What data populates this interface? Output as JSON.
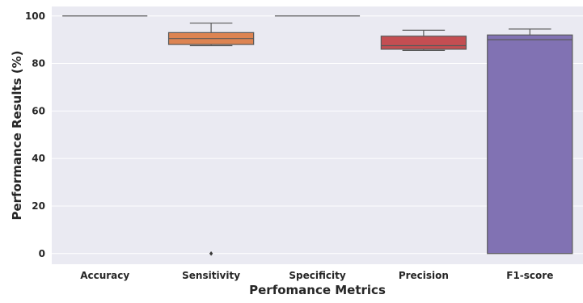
{
  "chart_data": {
    "type": "box",
    "title": "",
    "xlabel": "Perfomance Metrics",
    "ylabel": "Performance Results (%)",
    "ylim": [
      -4.5,
      104
    ],
    "yticks": [
      0,
      20,
      40,
      60,
      80,
      100
    ],
    "grid": true,
    "categories": [
      "Accuracy",
      "Sensitivity",
      "Specificity",
      "Precision",
      "F1-score"
    ],
    "boxes": [
      {
        "category": "Accuracy",
        "whisker_low": 100,
        "q1": 100,
        "median": 100,
        "q3": 100,
        "whisker_high": 100,
        "outliers": [],
        "color": "#4c72b0"
      },
      {
        "category": "Sensitivity",
        "whisker_low": 87.5,
        "q1": 88,
        "median": 90.5,
        "q3": 93,
        "whisker_high": 97,
        "outliers": [
          0
        ],
        "color": "#dd8452"
      },
      {
        "category": "Specificity",
        "whisker_low": 100,
        "q1": 100,
        "median": 100,
        "q3": 100,
        "whisker_high": 100,
        "outliers": [],
        "color": "#55a868"
      },
      {
        "category": "Precision",
        "whisker_low": 85.5,
        "q1": 86,
        "median": 87.5,
        "q3": 91.5,
        "whisker_high": 94,
        "outliers": [],
        "color": "#c44e52"
      },
      {
        "category": "F1-score",
        "whisker_low": 0,
        "q1": 0,
        "median": 90,
        "q3": 92,
        "whisker_high": 94.5,
        "outliers": [],
        "color": "#8172b3"
      }
    ],
    "colors": {
      "background": "#eaeaf2",
      "grid": "#ffffff",
      "line": "#595959",
      "text": "#262626"
    }
  }
}
